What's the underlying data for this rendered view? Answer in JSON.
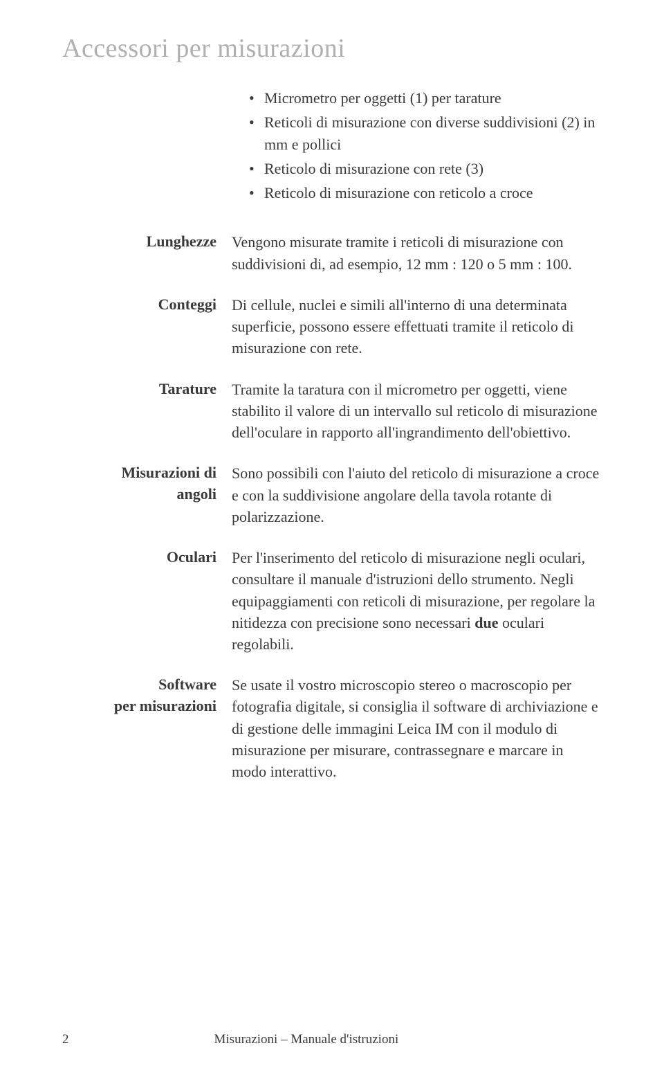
{
  "title": "Accessori per misurazioni",
  "title_color": "#b0b0b0",
  "title_fontsize": 38,
  "text_color": "#3a3a3a",
  "body_fontsize": 22,
  "background_color": "#ffffff",
  "bullets": [
    "Micrometro per oggetti (1) per tarature",
    "Reticoli di misurazione con diverse suddivisioni (2) in mm e pollici",
    "Reticolo di misurazione con rete (3)",
    "Reticolo di misurazione con reticolo a croce"
  ],
  "sections": {
    "lunghezze": {
      "label": "Lunghezze",
      "body": "Vengono misurate tramite i reticoli di misurazione con suddivisioni di, ad esempio, 12 mm : 120 o 5 mm : 100."
    },
    "conteggi": {
      "label": "Conteggi",
      "body": "Di cellule, nuclei e simili all'interno di una determinata superficie, possono essere effettuati tramite il reticolo di misurazione con rete."
    },
    "tarature": {
      "label": "Tarature",
      "body": "Tramite la taratura con il micrometro per oggetti, viene stabilito il valore di un intervallo sul reticolo di misurazione dell'oculare in rapporto all'ingrandimento dell'obiettivo."
    },
    "misurazioni_angoli": {
      "label_line1": "Misurazioni di",
      "label_line2": "angoli",
      "body": "Sono possibili con l'aiuto del reticolo di misurazione a croce e con la suddivisione angolare della tavola rotante di polarizzazione."
    },
    "oculari": {
      "label": "Oculari",
      "body_part1": "Per l'inserimento del reticolo di misurazione negli oculari, consultare il manuale d'istruzioni dello strumento. Negli equipaggiamenti con reticoli di misurazione, per regolare la nitidezza con precisione sono necessari ",
      "body_bold": "due",
      "body_part2": " oculari regolabili."
    },
    "software": {
      "label_line1": "Software",
      "label_line2": "per misurazioni",
      "body": "Se usate il vostro microscopio stereo o macroscopio per fotografia digitale, si consiglia il software di archiviazione e di gestione delle immagini Leica IM con il modulo di misurazione per misurare, contrassegnare e marcare in modo interattivo."
    }
  },
  "footer": {
    "page_number": "2",
    "doc_title": "Misurazioni – Manuale d'istruzioni"
  }
}
